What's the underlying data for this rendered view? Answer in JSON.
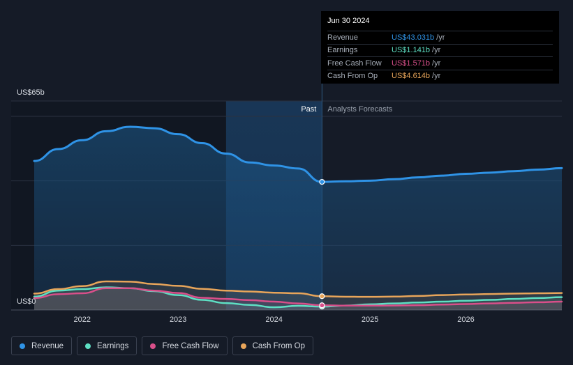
{
  "chart_data": {
    "type": "area",
    "y_unit_label": "US$65b",
    "y_zero_label": "US$0",
    "ylim": [
      0,
      65
    ],
    "xlim": [
      2021.5,
      2027.0
    ],
    "x_ticks": [
      {
        "value": 2022,
        "label": "2022"
      },
      {
        "value": 2023,
        "label": "2023"
      },
      {
        "value": 2024,
        "label": "2024"
      },
      {
        "value": 2025,
        "label": "2025"
      },
      {
        "value": 2026,
        "label": "2026"
      }
    ],
    "past_label": "Past",
    "forecast_label": "Analysts Forecasts",
    "divider_x": 2024.5,
    "highlight_start_x": 2023.5,
    "series": [
      {
        "name": "Revenue",
        "color": "#2f93e6",
        "x": [
          2021.5,
          2021.75,
          2022.0,
          2022.25,
          2022.5,
          2022.75,
          2023.0,
          2023.25,
          2023.5,
          2023.75,
          2024.0,
          2024.25,
          2024.5,
          2024.75,
          2025.0,
          2025.25,
          2025.5,
          2025.75,
          2026.0,
          2026.25,
          2026.5,
          2026.75,
          2027.0
        ],
        "values": [
          50.0,
          54.0,
          57.0,
          60.0,
          61.5,
          61.0,
          59.0,
          56.0,
          52.5,
          49.5,
          48.5,
          47.5,
          43.0,
          43.2,
          43.4,
          43.9,
          44.5,
          45.1,
          45.7,
          46.1,
          46.6,
          47.1,
          47.6
        ]
      },
      {
        "name": "Earnings",
        "color": "#5ee0c4",
        "x": [
          2021.5,
          2021.75,
          2022.0,
          2022.25,
          2022.5,
          2022.75,
          2023.0,
          2023.25,
          2023.5,
          2023.75,
          2024.0,
          2024.25,
          2024.5,
          2024.75,
          2025.0,
          2025.25,
          2025.5,
          2025.75,
          2026.0,
          2026.25,
          2026.5,
          2026.75,
          2027.0
        ],
        "values": [
          4.5,
          6.5,
          7.0,
          7.6,
          7.3,
          6.3,
          5.0,
          3.4,
          2.3,
          1.7,
          0.9,
          1.4,
          1.141,
          1.5,
          1.9,
          2.2,
          2.5,
          2.8,
          3.1,
          3.4,
          3.7,
          4.0,
          4.3
        ]
      },
      {
        "name": "Free Cash Flow",
        "color": "#d94f8a",
        "x": [
          2021.5,
          2021.75,
          2022.0,
          2022.25,
          2022.5,
          2022.75,
          2023.0,
          2023.25,
          2023.5,
          2023.75,
          2024.0,
          2024.25,
          2024.5,
          2024.75,
          2025.0,
          2025.25,
          2025.5,
          2025.75,
          2026.0,
          2026.25,
          2026.5,
          2026.75,
          2027.0
        ],
        "values": [
          4.0,
          5.3,
          5.6,
          7.3,
          7.3,
          6.5,
          5.7,
          4.1,
          3.7,
          3.3,
          2.8,
          2.2,
          1.571,
          1.45,
          1.45,
          1.5,
          1.6,
          1.8,
          2.0,
          2.2,
          2.4,
          2.6,
          2.8
        ]
      },
      {
        "name": "Cash From Op",
        "color": "#e8a55a",
        "x": [
          2021.5,
          2021.75,
          2022.0,
          2022.25,
          2022.5,
          2022.75,
          2023.0,
          2023.25,
          2023.5,
          2023.75,
          2024.0,
          2024.25,
          2024.5,
          2024.75,
          2025.0,
          2025.25,
          2025.5,
          2025.75,
          2026.0,
          2026.25,
          2026.5,
          2026.75,
          2027.0
        ],
        "values": [
          5.5,
          7.0,
          8.0,
          9.6,
          9.5,
          8.7,
          8.1,
          7.1,
          6.5,
          6.2,
          5.8,
          5.6,
          4.614,
          4.45,
          4.4,
          4.5,
          4.7,
          5.0,
          5.2,
          5.35,
          5.5,
          5.6,
          5.7
        ]
      }
    ]
  },
  "tooltip": {
    "date": "Jun 30 2024",
    "rows": [
      {
        "label": "Revenue",
        "value": "US$43.031b",
        "unit": "/yr",
        "color": "#2f93e6"
      },
      {
        "label": "Earnings",
        "value": "US$1.141b",
        "unit": "/yr",
        "color": "#5ee0c4"
      },
      {
        "label": "Free Cash Flow",
        "value": "US$1.571b",
        "unit": "/yr",
        "color": "#d94f8a"
      },
      {
        "label": "Cash From Op",
        "value": "US$4.614b",
        "unit": "/yr",
        "color": "#e8a55a"
      }
    ]
  },
  "legend": [
    {
      "label": "Revenue",
      "color": "#2f93e6"
    },
    {
      "label": "Earnings",
      "color": "#5ee0c4"
    },
    {
      "label": "Free Cash Flow",
      "color": "#d94f8a"
    },
    {
      "label": "Cash From Op",
      "color": "#e8a55a"
    }
  ]
}
